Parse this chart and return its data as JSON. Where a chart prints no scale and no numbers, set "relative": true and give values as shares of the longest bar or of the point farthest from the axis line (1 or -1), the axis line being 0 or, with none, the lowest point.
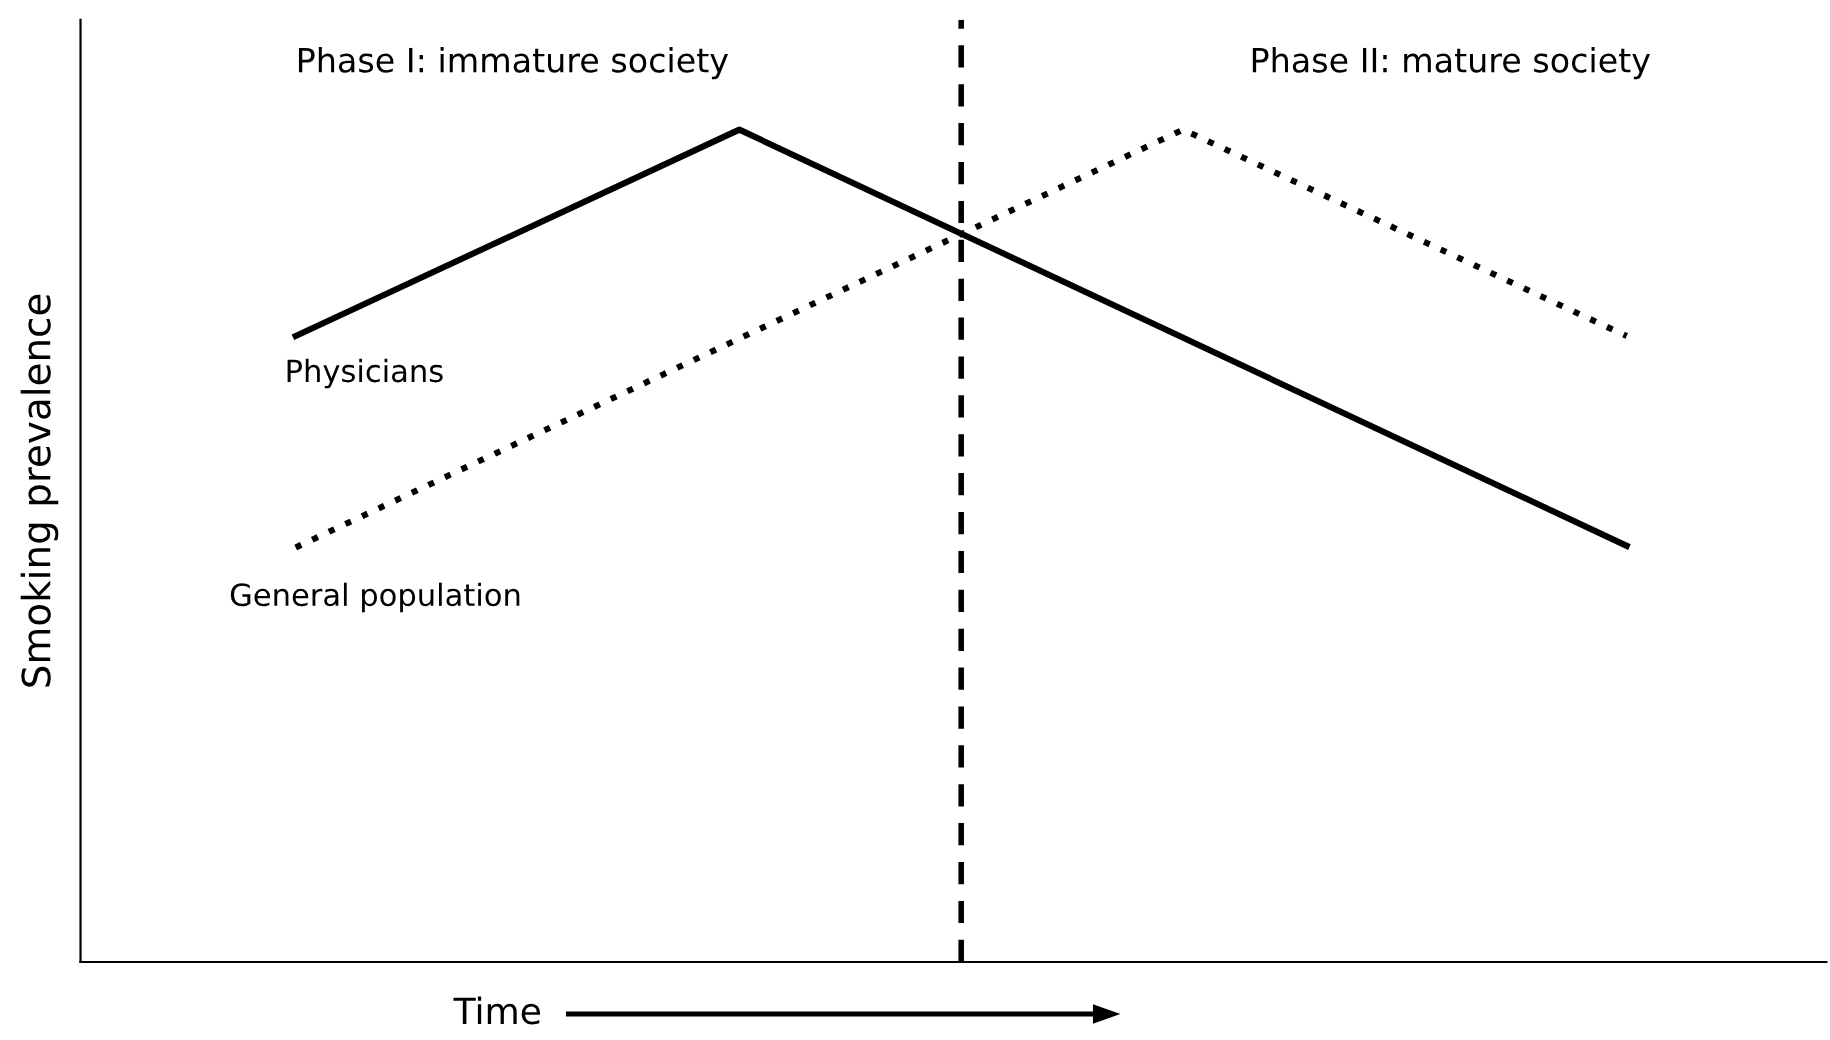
{
  "chart_data": {
    "type": "line",
    "relative": true,
    "xlabel": "Time",
    "ylabel": "Smoking prevalence",
    "categories": [
      null,
      null,
      null,
      null,
      null,
      null,
      null
    ],
    "series": [
      {
        "name": "Physicians",
        "color": "#000000",
        "line_style": "solid",
        "values": [
          0.752,
          null,
          1,
          null,
          null,
          null,
          0.5
        ]
      },
      {
        "name": "General population",
        "color": "#000000",
        "line_style": "dotted",
        "values": [
          0.498,
          null,
          null,
          null,
          1,
          null,
          0.752
        ]
      }
    ],
    "annotations": [
      "Phase I: immature society",
      "Phase II: mature society"
    ],
    "grid": false,
    "legend": false,
    "marker": "none"
  }
}
